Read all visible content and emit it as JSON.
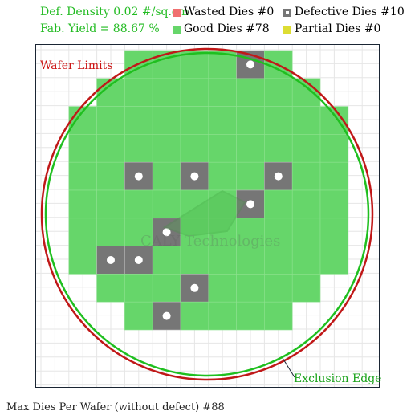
{
  "legend": {
    "density": "Def. Density 0.02 #/sq.cm",
    "yield": "Fab. Yield = 88.67 %",
    "wasted": "Wasted Dies  #0",
    "good": "Good Dies #78",
    "defective": "Defective Dies  #10",
    "partial": "Partial Dies #0"
  },
  "labels": {
    "wafer_limits": "Wafer Limits",
    "exclusion_edge": "Exclusion Edge",
    "watermark": "CALY Technologies"
  },
  "footer": "Max Dies Per Wafer (without defect) #88",
  "colors": {
    "good": "#66d66a",
    "defective": "#767676",
    "wasted": "#f07070",
    "partial": "#dddd33",
    "wafer_limit": "#c01818",
    "exclusion": "#1fbf1f",
    "grid": "#e6e6e6"
  },
  "wafer": {
    "row_spans": [
      [
        3,
        8
      ],
      [
        2,
        9
      ],
      [
        1,
        10
      ],
      [
        1,
        10
      ],
      [
        1,
        10
      ],
      [
        1,
        10
      ],
      [
        1,
        10
      ],
      [
        1,
        10
      ],
      [
        2,
        9
      ],
      [
        3,
        8
      ]
    ],
    "defects": [
      [
        0,
        7
      ],
      [
        4,
        3
      ],
      [
        4,
        5
      ],
      [
        4,
        8
      ],
      [
        5,
        7
      ],
      [
        6,
        4
      ],
      [
        7,
        2
      ],
      [
        7,
        3
      ],
      [
        8,
        5
      ],
      [
        9,
        4
      ]
    ]
  }
}
